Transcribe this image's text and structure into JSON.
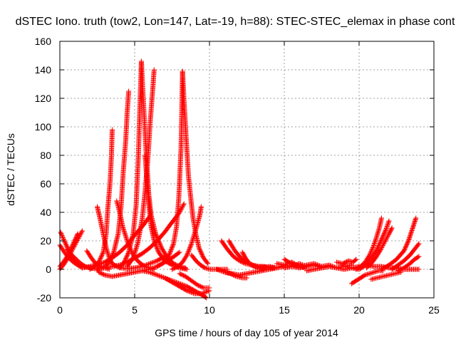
{
  "chart_data": {
    "type": "scatter",
    "title": "dSTEC Iono. truth (tow2, Lon=147, Lat=-19, h=88): STEC-STEC_elemax in phase cont",
    "xlabel": "GPS time / hours of day 105 of year 2014",
    "ylabel": "dSTEC  / TECUs",
    "xlim": [
      0,
      25
    ],
    "ylim": [
      -20,
      160
    ],
    "xticks": [
      0,
      5,
      10,
      15,
      20,
      25
    ],
    "yticks": [
      -20,
      0,
      20,
      40,
      60,
      80,
      100,
      120,
      140,
      160
    ],
    "grid": true,
    "marker": "+",
    "color": "#ff0000",
    "series": [
      {
        "x": [
          0.05,
          0.3,
          0.6,
          0.9,
          1.2,
          1.5
        ],
        "y": [
          26,
          20,
          13,
          7,
          3,
          1
        ]
      },
      {
        "x": [
          0.0,
          0.3,
          0.6,
          0.9,
          1.2,
          1.5,
          1.8,
          2.1
        ],
        "y": [
          17,
          12,
          8,
          5,
          3,
          2,
          1.5,
          1
        ]
      },
      {
        "x": [
          0.0,
          0.3,
          0.6,
          0.9,
          1.2,
          1.5
        ],
        "y": [
          0,
          4,
          9,
          15,
          21,
          27
        ]
      },
      {
        "x": [
          0.0,
          0.3,
          0.6,
          0.9,
          1.2
        ],
        "y": [
          2,
          6,
          11,
          18,
          25
        ]
      },
      {
        "x": [
          0.5,
          0.8,
          1.1,
          1.4,
          1.7,
          2.0,
          2.3,
          2.6
        ],
        "y": [
          14,
          10,
          7,
          4,
          2,
          1,
          0.5,
          0
        ]
      },
      {
        "x": [
          1.8,
          2.1,
          2.4,
          2.7,
          3.0,
          3.3
        ],
        "y": [
          13,
          8,
          4,
          2,
          1,
          0
        ]
      },
      {
        "x": [
          1.5,
          2.0,
          2.5,
          3.0,
          3.5,
          4.0,
          4.5,
          5.0,
          5.5,
          6.0
        ],
        "y": [
          1,
          2,
          3,
          5,
          8,
          12,
          17,
          24,
          30,
          37
        ]
      },
      {
        "x": [
          2.0,
          2.3,
          2.6,
          2.9,
          3.1,
          3.2,
          3.35,
          3.45,
          3.5
        ],
        "y": [
          0,
          2,
          5,
          12,
          25,
          42,
          60,
          80,
          98
        ]
      },
      {
        "x": [
          2.5,
          2.7,
          2.9,
          3.1,
          3.3,
          3.5,
          3.8,
          4.1,
          4.5,
          5.0,
          5.5,
          6.0,
          6.5,
          7.0
        ],
        "y": [
          44,
          35,
          25,
          15,
          8,
          4,
          2,
          1,
          0.5,
          1,
          2,
          4,
          6,
          9
        ]
      },
      {
        "x": [
          2.6,
          3.0,
          3.5,
          4.0,
          4.5,
          5.0,
          5.5,
          6.0,
          6.5,
          7.0,
          7.5,
          8.0
        ],
        "y": [
          -2,
          -4,
          -5,
          -4,
          -3,
          -2,
          -1,
          0,
          2,
          5,
          8,
          12
        ]
      },
      {
        "x": [
          2.5,
          3.0,
          3.5,
          4.0,
          4.5,
          5.0,
          5.5,
          6.0,
          6.5,
          7.0,
          7.5,
          8.0,
          8.3
        ],
        "y": [
          0,
          1,
          2,
          3,
          5,
          8,
          11,
          15,
          20,
          26,
          33,
          40,
          46
        ]
      },
      {
        "x": [
          3.0,
          3.3,
          3.6,
          3.9,
          4.1,
          4.25,
          4.4,
          4.5,
          4.6
        ],
        "y": [
          2,
          5,
          12,
          25,
          45,
          70,
          90,
          110,
          125
        ]
      },
      {
        "x": [
          3.8,
          4.0,
          4.2,
          4.5,
          4.8,
          5.1,
          5.4,
          5.7,
          6.0,
          6.3
        ],
        "y": [
          48,
          40,
          30,
          20,
          12,
          7,
          4,
          2,
          1,
          0
        ]
      },
      {
        "x": [
          4.0,
          4.3,
          4.6,
          4.9,
          5.1,
          5.25,
          5.35,
          5.45
        ],
        "y": [
          1,
          5,
          12,
          25,
          45,
          80,
          115,
          146
        ]
      },
      {
        "x": [
          5.45,
          5.55,
          5.65,
          5.75,
          5.85,
          5.95,
          6.1,
          6.4,
          6.8,
          7.2,
          7.6,
          8.0,
          8.4
        ],
        "y": [
          146,
          125,
          105,
          85,
          68,
          52,
          38,
          25,
          15,
          8,
          4,
          2,
          1
        ]
      },
      {
        "x": [
          4.5,
          4.9,
          5.2,
          5.5,
          5.7,
          5.9,
          6.05,
          6.2,
          6.3
        ],
        "y": [
          2,
          8,
          18,
          35,
          55,
          80,
          105,
          125,
          140
        ]
      },
      {
        "x": [
          5.7,
          5.8,
          5.9,
          6.0,
          6.1,
          6.3,
          6.6,
          7.0,
          7.5,
          8.0,
          8.5
        ],
        "y": [
          80,
          65,
          52,
          40,
          30,
          20,
          12,
          6,
          3,
          1,
          0
        ]
      },
      {
        "x": [
          6.0,
          6.5,
          7.0,
          7.5,
          8.0,
          8.5,
          9.0,
          9.5,
          9.8
        ],
        "y": [
          -2,
          -4,
          -6,
          -8,
          -10,
          -12,
          -15,
          -18,
          -20
        ]
      },
      {
        "x": [
          5.5,
          6.0,
          6.5,
          7.0,
          7.5,
          8.0,
          8.5,
          9.0,
          9.5,
          10.0
        ],
        "y": [
          -1,
          -2,
          -4,
          -6,
          -9,
          -12,
          -15,
          -17,
          -17,
          -15
        ]
      },
      {
        "x": [
          6.5,
          7.0,
          7.3,
          7.6,
          7.8,
          7.95,
          8.1,
          8.2
        ],
        "y": [
          2,
          5,
          10,
          18,
          30,
          50,
          85,
          139
        ]
      },
      {
        "x": [
          8.2,
          8.3,
          8.4,
          8.5,
          8.6,
          8.75,
          8.9,
          9.1,
          9.3,
          9.6,
          9.9
        ],
        "y": [
          139,
          118,
          100,
          82,
          65,
          50,
          36,
          24,
          15,
          8,
          4
        ]
      },
      {
        "x": [
          7.5,
          7.9,
          8.2,
          8.5,
          8.8,
          9.0,
          9.2,
          9.35,
          9.45
        ],
        "y": [
          0,
          2,
          5,
          10,
          18,
          25,
          32,
          38,
          44
        ]
      },
      {
        "x": [
          8.0,
          8.4,
          8.8,
          9.2,
          9.6,
          10.0
        ],
        "y": [
          -3,
          -5,
          -8,
          -11,
          -13,
          -13
        ]
      },
      {
        "x": [
          8.8,
          9.1,
          9.4,
          9.7,
          10.0,
          10.3,
          10.6,
          10.9,
          11.2
        ],
        "y": [
          10,
          6,
          3,
          1,
          0,
          0,
          0,
          0,
          0
        ]
      },
      {
        "x": [
          10.8,
          11.2,
          11.6,
          12.0,
          12.4,
          12.8,
          13.2,
          13.6,
          14.0
        ],
        "y": [
          20,
          14,
          9,
          6,
          4,
          3,
          2,
          2,
          1
        ]
      },
      {
        "x": [
          11.3,
          11.7,
          12.1,
          12.5,
          12.9,
          13.3,
          13.7,
          14.1,
          14.5
        ],
        "y": [
          20,
          13,
          8,
          5,
          3,
          2,
          2,
          1,
          1
        ]
      },
      {
        "x": [
          10.5,
          11.0,
          11.5,
          12.0,
          12.5,
          13.0,
          13.5,
          14.0,
          14.5,
          15.0
        ],
        "y": [
          0,
          -2,
          -3,
          -4,
          -3,
          -2,
          -1,
          0,
          1,
          2
        ]
      },
      {
        "x": [
          11.0,
          11.4,
          11.8,
          12.2,
          12.5
        ],
        "y": [
          -2,
          -3,
          -5,
          -6,
          -6
        ]
      },
      {
        "x": [
          12.2,
          12.4,
          12.6,
          12.8,
          13.0,
          13.3,
          13.6
        ],
        "y": [
          12,
          8,
          5,
          3,
          2,
          1,
          0
        ]
      },
      {
        "x": [
          13.0,
          13.5,
          14.0,
          14.5,
          15.0,
          15.5,
          16.0,
          16.5,
          17.0,
          17.5,
          18.0
        ],
        "y": [
          2,
          1,
          2,
          1,
          3,
          2,
          4,
          2,
          3,
          1,
          2
        ]
      },
      {
        "x": [
          14.5,
          15.0,
          15.5,
          16.0,
          16.5,
          17.0,
          17.5,
          18.0,
          18.5,
          19.0,
          19.5
        ],
        "y": [
          4,
          3,
          5,
          2,
          3,
          4,
          2,
          3,
          1,
          2,
          3
        ]
      },
      {
        "x": [
          15.0,
          15.5,
          16.0,
          16.5,
          17.0,
          17.5,
          18.0,
          18.5,
          19.0,
          19.5,
          20.0
        ],
        "y": [
          1,
          2,
          1,
          2,
          3,
          1,
          2,
          1,
          2,
          1,
          2
        ]
      },
      {
        "x": [
          16.5,
          17.0,
          17.5,
          18.0,
          18.5,
          19.0,
          19.5,
          20.0
        ],
        "y": [
          -1,
          0,
          1,
          2,
          1,
          0,
          1,
          0
        ]
      },
      {
        "x": [
          15.0,
          15.3,
          15.6,
          16.0,
          16.4
        ],
        "y": [
          7,
          5,
          3,
          2,
          1
        ]
      },
      {
        "x": [
          18.5,
          18.9,
          19.3,
          19.6,
          19.8
        ],
        "y": [
          5,
          4,
          6,
          5,
          7
        ]
      },
      {
        "x": [
          19.5,
          19.8,
          20.1,
          20.4,
          20.7,
          21.0,
          21.3,
          21.6
        ],
        "y": [
          -10,
          -8,
          -6,
          -4,
          -3,
          -2,
          -1,
          -1
        ]
      },
      {
        "x": [
          19.8,
          20.1,
          20.4,
          20.7,
          20.95,
          21.15,
          21.35,
          21.5
        ],
        "y": [
          0,
          2,
          5,
          10,
          16,
          22,
          29,
          36
        ]
      },
      {
        "x": [
          20.0,
          20.3,
          20.6,
          20.9,
          21.2,
          21.5,
          21.8,
          22.0
        ],
        "y": [
          0,
          2,
          5,
          9,
          14,
          21,
          28,
          34
        ]
      },
      {
        "x": [
          20.5,
          20.8,
          21.1,
          21.4,
          21.7,
          22.0,
          22.2
        ],
        "y": [
          1,
          4,
          8,
          13,
          19,
          25,
          29
        ]
      },
      {
        "x": [
          20.5,
          21.0,
          21.5,
          22.0,
          22.5,
          23.0,
          23.5,
          24.0
        ],
        "y": [
          3,
          2,
          2,
          1,
          1,
          0,
          0,
          0
        ]
      },
      {
        "x": [
          20.8,
          21.2,
          21.6,
          22.0,
          22.4,
          22.8
        ],
        "y": [
          -7,
          -6,
          -5,
          -4,
          -3,
          -2
        ]
      },
      {
        "x": [
          21.5,
          22.0,
          22.5,
          23.0,
          23.3,
          23.55,
          23.8
        ],
        "y": [
          0,
          3,
          7,
          13,
          20,
          28,
          36
        ]
      },
      {
        "x": [
          22.2,
          22.6,
          23.0,
          23.4,
          23.7,
          24.0
        ],
        "y": [
          0,
          3,
          6,
          10,
          14,
          18
        ]
      },
      {
        "x": [
          22.6,
          23.0,
          23.4,
          23.7,
          24.0
        ],
        "y": [
          -1,
          1,
          4,
          7,
          9
        ]
      }
    ]
  }
}
